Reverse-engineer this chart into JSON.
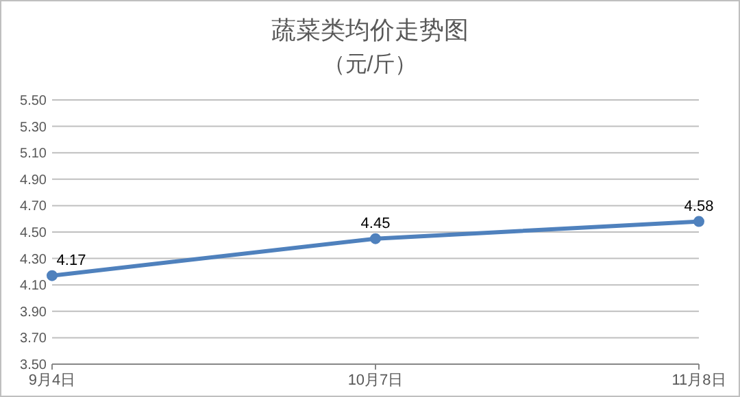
{
  "chart_data": {
    "type": "line",
    "title": "蔬菜类均价走势图",
    "subtitle": "（元/斤）",
    "categories": [
      "9月4日",
      "10月7日",
      "11月8日"
    ],
    "series": [
      {
        "color": "#4f81bd",
        "values": [
          4.17,
          4.45,
          4.58
        ]
      }
    ],
    "ylim": [
      3.5,
      5.5
    ],
    "yticks": [
      {
        "value": 3.5,
        "label": "3.50"
      },
      {
        "value": 3.7,
        "label": "3.70"
      },
      {
        "value": 3.9,
        "label": "3.90"
      },
      {
        "value": 4.1,
        "label": "4.10"
      },
      {
        "value": 4.3,
        "label": "4.30"
      },
      {
        "value": 4.5,
        "label": "4.50"
      },
      {
        "value": 4.7,
        "label": "4.70"
      },
      {
        "value": 4.9,
        "label": "4.90"
      },
      {
        "value": 5.1,
        "label": "5.10"
      },
      {
        "value": 5.3,
        "label": "5.30"
      },
      {
        "value": 5.5,
        "label": "5.50"
      }
    ],
    "grid": "y",
    "marker": "circle",
    "line_style": "solid",
    "data_labels": true
  }
}
